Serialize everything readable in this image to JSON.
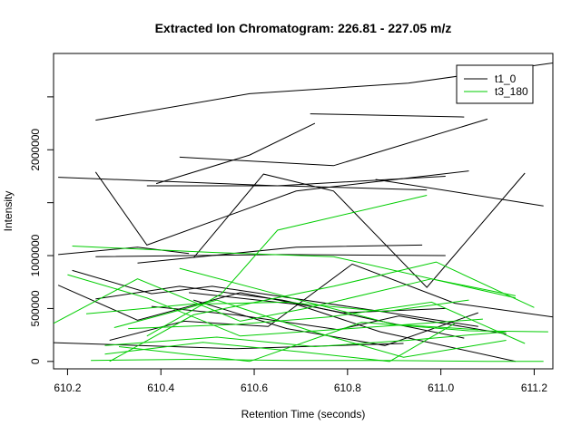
{
  "chart_data": {
    "type": "line",
    "title": "Extracted Ion Chromatogram: 226.81 - 227.05 m/z",
    "xlabel": "Retention Time (seconds)",
    "ylabel": "Intensity",
    "xlim": [
      610.17,
      611.24
    ],
    "ylim": [
      -70000,
      2910000
    ],
    "x_ticks": [
      610.2,
      610.4,
      610.6,
      610.8,
      611.0,
      611.2
    ],
    "x_tick_labels": [
      "610.2",
      "610.4",
      "610.6",
      "610.8",
      "611.0",
      "611.2"
    ],
    "y_ticks": [
      0,
      500000,
      1000000,
      1500000,
      2000000,
      2500000
    ],
    "y_tick_labels": [
      "0",
      "500000",
      "1000000",
      "",
      "2000000",
      ""
    ],
    "grid": false,
    "legend": {
      "position": "top-right",
      "entries": [
        {
          "label": "t1_0",
          "color": "#000000"
        },
        {
          "label": "t3_180",
          "color": "#00cd00"
        }
      ]
    },
    "series": [
      {
        "group": "t1_0",
        "color": "#000000",
        "points": [
          [
            610.26,
            2280000
          ],
          [
            610.59,
            2530000
          ],
          [
            610.93,
            2630000
          ],
          [
            611.24,
            2820000
          ]
        ]
      },
      {
        "group": "t1_0",
        "color": "#000000",
        "points": [
          [
            610.72,
            2340000
          ],
          [
            611.05,
            2310000
          ]
        ]
      },
      {
        "group": "t1_0",
        "color": "#000000",
        "points": [
          [
            610.39,
            1680000
          ],
          [
            610.59,
            1950000
          ],
          [
            610.73,
            2250000
          ]
        ]
      },
      {
        "group": "t1_0",
        "color": "#000000",
        "points": [
          [
            610.44,
            1930000
          ],
          [
            610.77,
            1850000
          ],
          [
            611.1,
            2290000
          ]
        ]
      },
      {
        "group": "t1_0",
        "color": "#000000",
        "points": [
          [
            610.18,
            1740000
          ],
          [
            610.65,
            1660000
          ],
          [
            611.01,
            1750000
          ]
        ]
      },
      {
        "group": "t1_0",
        "color": "#000000",
        "points": [
          [
            610.37,
            1660000
          ],
          [
            610.66,
            1660000
          ],
          [
            610.97,
            1620000
          ]
        ]
      },
      {
        "group": "t1_0",
        "color": "#000000",
        "points": [
          [
            610.26,
            1790000
          ],
          [
            610.37,
            1100000
          ],
          [
            610.69,
            1610000
          ],
          [
            611.06,
            1800000
          ]
        ]
      },
      {
        "group": "t1_0",
        "color": "#000000",
        "points": [
          [
            610.47,
            980000
          ],
          [
            610.62,
            1770000
          ],
          [
            610.77,
            1610000
          ],
          [
            610.97,
            700000
          ],
          [
            611.18,
            1780000
          ]
        ]
      },
      {
        "group": "t1_0",
        "color": "#000000",
        "points": [
          [
            610.86,
            1720000
          ],
          [
            611.22,
            1470000
          ]
        ]
      },
      {
        "group": "t1_0",
        "color": "#000000",
        "points": [
          [
            610.18,
            1010000
          ],
          [
            610.35,
            1080000
          ],
          [
            610.46,
            1020000
          ]
        ]
      },
      {
        "group": "t1_0",
        "color": "#000000",
        "points": [
          [
            610.35,
            930000
          ],
          [
            610.69,
            1080000
          ],
          [
            610.96,
            1100000
          ]
        ]
      },
      {
        "group": "t1_0",
        "color": "#000000",
        "points": [
          [
            610.26,
            990000
          ],
          [
            610.66,
            1010000
          ],
          [
            611.01,
            1000000
          ]
        ]
      },
      {
        "group": "t1_0",
        "color": "#000000",
        "points": [
          [
            610.21,
            860000
          ],
          [
            610.38,
            640000
          ],
          [
            610.51,
            710000
          ],
          [
            610.86,
            480000
          ],
          [
            611.08,
            330000
          ]
        ]
      },
      {
        "group": "t1_0",
        "color": "#000000",
        "points": [
          [
            610.18,
            720000
          ],
          [
            610.35,
            390000
          ],
          [
            610.57,
            650000
          ],
          [
            610.79,
            460000
          ],
          [
            611.01,
            500000
          ]
        ]
      },
      {
        "group": "t1_0",
        "color": "#000000",
        "points": [
          [
            610.26,
            590000
          ],
          [
            610.44,
            710000
          ],
          [
            610.66,
            580000
          ],
          [
            610.86,
            390000
          ],
          [
            611.05,
            220000
          ]
        ]
      },
      {
        "group": "t1_0",
        "color": "#000000",
        "points": [
          [
            610.38,
            520000
          ],
          [
            610.56,
            440000
          ],
          [
            610.78,
            300000
          ],
          [
            610.91,
            430000
          ],
          [
            611.14,
            260000
          ]
        ]
      },
      {
        "group": "t1_0",
        "color": "#000000",
        "points": [
          [
            610.29,
            200000
          ],
          [
            610.45,
            380000
          ],
          [
            610.63,
            330000
          ],
          [
            610.81,
            920000
          ],
          [
            611.03,
            550000
          ],
          [
            611.24,
            420000
          ]
        ]
      },
      {
        "group": "t1_0",
        "color": "#000000",
        "points": [
          [
            610.47,
            580000
          ],
          [
            610.67,
            310000
          ],
          [
            610.88,
            150000
          ],
          [
            611.08,
            460000
          ]
        ]
      },
      {
        "group": "t1_0",
        "color": "#000000",
        "points": [
          [
            610.46,
            650000
          ],
          [
            610.69,
            540000
          ],
          [
            610.87,
            280000
          ],
          [
            611.16,
            0
          ]
        ]
      },
      {
        "group": "t1_0",
        "color": "#000000",
        "points": [
          [
            610.15,
            180000
          ],
          [
            610.56,
            120000
          ],
          [
            610.92,
            170000
          ]
        ]
      },
      {
        "group": "t3_180",
        "color": "#00cd00",
        "points": [
          [
            610.37,
            240000
          ],
          [
            610.53,
            640000
          ],
          [
            610.65,
            1240000
          ],
          [
            610.97,
            1570000
          ]
        ]
      },
      {
        "group": "t3_180",
        "color": "#00cd00",
        "points": [
          [
            610.21,
            1090000
          ],
          [
            610.51,
            1030000
          ],
          [
            610.77,
            990000
          ],
          [
            611.16,
            600000
          ]
        ]
      },
      {
        "group": "t3_180",
        "color": "#00cd00",
        "points": [
          [
            610.29,
            0
          ],
          [
            610.47,
            440000
          ],
          [
            610.77,
            710000
          ],
          [
            610.99,
            940000
          ],
          [
            611.2,
            510000
          ]
        ]
      },
      {
        "group": "t3_180",
        "color": "#00cd00",
        "points": [
          [
            610.17,
            360000
          ],
          [
            610.35,
            780000
          ],
          [
            610.57,
            380000
          ],
          [
            610.71,
            500000
          ],
          [
            610.98,
            780000
          ],
          [
            611.16,
            620000
          ]
        ]
      },
      {
        "group": "t3_180",
        "color": "#00cd00",
        "points": [
          [
            610.2,
            820000
          ],
          [
            610.37,
            600000
          ],
          [
            610.57,
            240000
          ],
          [
            610.87,
            330000
          ],
          [
            611.09,
            400000
          ]
        ]
      },
      {
        "group": "t3_180",
        "color": "#00cd00",
        "points": [
          [
            610.3,
            320000
          ],
          [
            610.52,
            580000
          ],
          [
            610.72,
            290000
          ],
          [
            610.92,
            40000
          ],
          [
            611.14,
            200000
          ]
        ]
      },
      {
        "group": "t3_180",
        "color": "#00cd00",
        "points": [
          [
            610.24,
            450000
          ],
          [
            610.46,
            540000
          ],
          [
            610.67,
            560000
          ],
          [
            610.88,
            470000
          ],
          [
            611.06,
            580000
          ]
        ]
      },
      {
        "group": "t3_180",
        "color": "#00cd00",
        "points": [
          [
            610.44,
            880000
          ],
          [
            610.68,
            600000
          ],
          [
            610.9,
            350000
          ],
          [
            611.08,
            300000
          ]
        ]
      },
      {
        "group": "t3_180",
        "color": "#00cd00",
        "points": [
          [
            610.28,
            150000
          ],
          [
            610.52,
            230000
          ],
          [
            610.73,
            140000
          ],
          [
            610.93,
            200000
          ],
          [
            611.14,
            280000
          ]
        ]
      },
      {
        "group": "t3_180",
        "color": "#00cd00",
        "points": [
          [
            610.33,
            310000
          ],
          [
            610.56,
            350000
          ],
          [
            610.76,
            420000
          ],
          [
            610.98,
            560000
          ],
          [
            611.18,
            170000
          ]
        ]
      },
      {
        "group": "t3_180",
        "color": "#00cd00",
        "points": [
          [
            610.25,
            10000
          ],
          [
            610.46,
            20000
          ],
          [
            610.68,
            10000
          ],
          [
            610.88,
            10000
          ],
          [
            611.1,
            0
          ],
          [
            611.22,
            0
          ]
        ]
      },
      {
        "group": "t3_180",
        "color": "#00cd00",
        "points": [
          [
            610.31,
            140000
          ],
          [
            610.59,
            0
          ],
          [
            610.83,
            370000
          ],
          [
            611.06,
            290000
          ],
          [
            611.23,
            280000
          ]
        ]
      },
      {
        "group": "t3_180",
        "color": "#00cd00",
        "points": [
          [
            610.28,
            70000
          ],
          [
            610.49,
            180000
          ],
          [
            610.7,
            90000
          ],
          [
            610.89,
            0
          ],
          [
            611.03,
            360000
          ]
        ]
      }
    ]
  }
}
